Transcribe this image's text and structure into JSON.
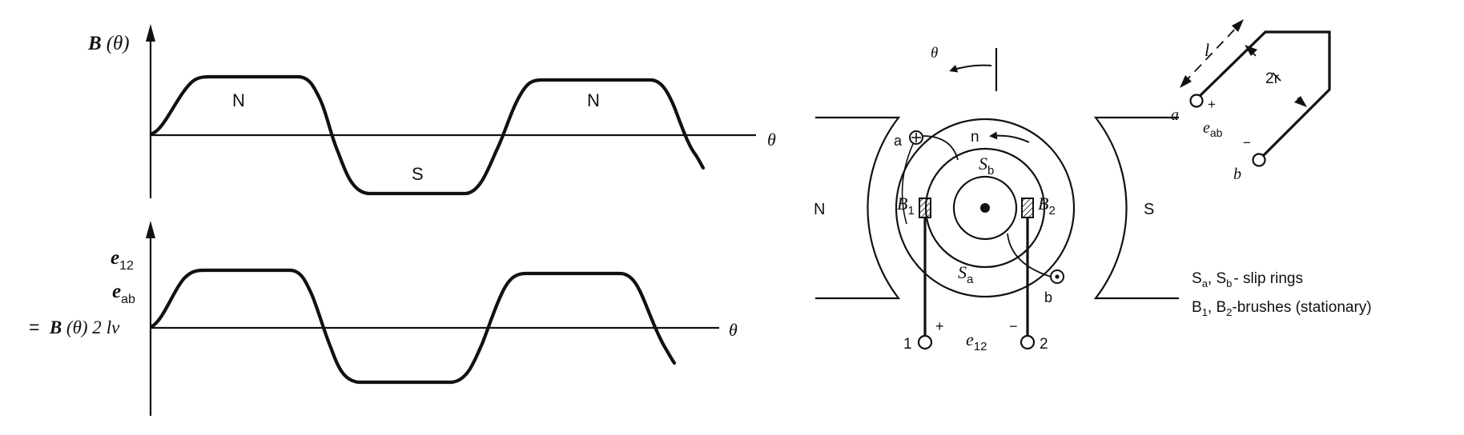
{
  "waveform_top": {
    "y_label_symbol": "B",
    "y_label_arg": "(θ)",
    "x_label": "θ",
    "pole_labels": [
      "N",
      "S",
      "N"
    ]
  },
  "waveform_bottom": {
    "y_label_e12_base": "e",
    "y_label_e12_sub": "12",
    "y_label_eab_base": "e",
    "y_label_eab_sub": "ab",
    "y_label_eq_prefix": "= ",
    "y_label_eq_B": "B",
    "y_label_eq_rest": " (θ)  2",
    "y_label_eq_lv": "lv",
    "x_label": "θ"
  },
  "machine": {
    "theta_label": "θ",
    "pole_north": "N",
    "pole_south": "S",
    "rotation_label": "n",
    "coil_a": "a",
    "coil_b": "b",
    "ring_sb_base": "S",
    "ring_sb_sub": "b",
    "ring_sa_base": "S",
    "ring_sa_sub": "a",
    "brush1_base": "B",
    "brush1_sub": "1",
    "brush2_base": "B",
    "brush2_sub": "2",
    "terminal1": "1",
    "terminal2": "2",
    "plus": "+",
    "minus": "−",
    "voltage_base": "e",
    "voltage_sub": "12"
  },
  "coil": {
    "length_label": "l",
    "radius_label": "2r",
    "terminal_a": "a",
    "terminal_b": "b",
    "plus": "+",
    "minus": "−",
    "voltage_base": "e",
    "voltage_sub": "ab"
  },
  "legend": {
    "line1_S": "S",
    "line1_a": "a",
    "line1_mid": ", S",
    "line1_b": "b",
    "line1_end": "- slip rings",
    "line2_B": "B",
    "line2_1": "1",
    "line2_mid": ", B",
    "line2_2": "2",
    "line2_end": "-brushes (stationary)"
  }
}
